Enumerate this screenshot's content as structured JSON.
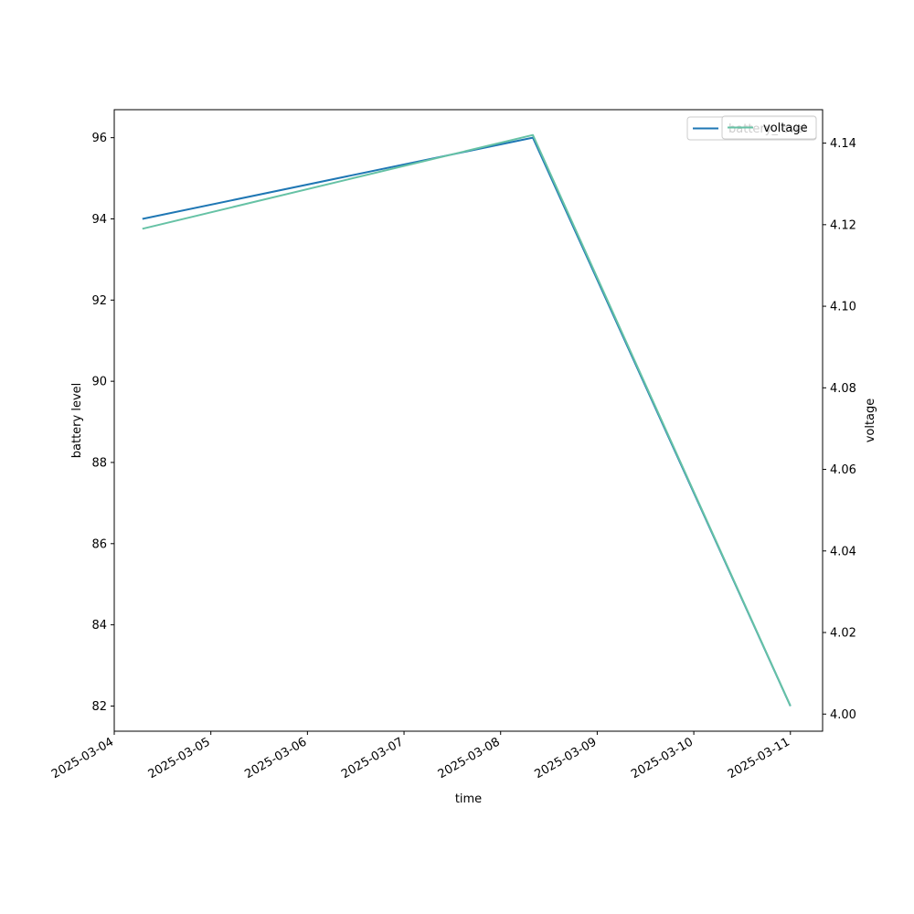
{
  "chart_data": {
    "type": "line",
    "title": "",
    "xlabel": "time",
    "ylabel": "battery level",
    "y2label": "voltage",
    "x": [
      "2025-03-04 07:00",
      "2025-03-08 08:00",
      "2025-03-11 00:00"
    ],
    "xlim": [
      "2025-03-04 00:00",
      "2025-03-11 08:00"
    ],
    "xticks": [
      "2025-03-04",
      "2025-03-05",
      "2025-03-06",
      "2025-03-07",
      "2025-03-08",
      "2025-03-09",
      "2025-03-10",
      "2025-03-11"
    ],
    "ylim": [
      81.38,
      96.69
    ],
    "yticks": [
      "82",
      "84",
      "86",
      "88",
      "90",
      "92",
      "94",
      "96"
    ],
    "y2lim": [
      3.9958,
      4.1482
    ],
    "y2ticks": [
      "4.00",
      "4.02",
      "4.04",
      "4.06",
      "4.08",
      "4.10",
      "4.12",
      "4.14"
    ],
    "series": [
      {
        "name": "battery_level",
        "axis": "left",
        "color": "#1f77b4",
        "values": [
          94,
          96,
          82
        ]
      },
      {
        "name": "voltage",
        "axis": "right",
        "color": "#66c2a5",
        "values": [
          4.119,
          4.142,
          4.002
        ]
      }
    ],
    "legends": [
      {
        "entries": [
          "battery_level"
        ],
        "position": "top-right"
      },
      {
        "entries": [
          "voltage"
        ],
        "position": "top-right"
      }
    ],
    "grid": false
  }
}
